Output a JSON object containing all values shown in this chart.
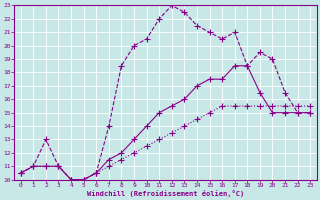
{
  "xlabel": "Windchill (Refroidissement éolien,°C)",
  "background_color": "#c8e8e8",
  "grid_color": "#ffffff",
  "line_color": "#880088",
  "xlim": [
    -0.5,
    23.5
  ],
  "ylim": [
    10,
    23
  ],
  "xticks": [
    0,
    1,
    2,
    3,
    4,
    5,
    6,
    7,
    8,
    9,
    10,
    11,
    12,
    13,
    14,
    15,
    16,
    17,
    18,
    19,
    20,
    21,
    22,
    23
  ],
  "yticks": [
    10,
    11,
    12,
    13,
    14,
    15,
    16,
    17,
    18,
    19,
    20,
    21,
    22,
    23
  ],
  "curve1_x": [
    0,
    1,
    2,
    3,
    4,
    5,
    6,
    7,
    8,
    9,
    10,
    11,
    12,
    13,
    14,
    15,
    16,
    17,
    18,
    19,
    20,
    21,
    22,
    23
  ],
  "curve1_y": [
    10.5,
    11.0,
    13.0,
    11.0,
    10.0,
    10.0,
    10.5,
    14.0,
    18.5,
    20.0,
    20.5,
    22.0,
    23.0,
    22.5,
    21.5,
    21.0,
    20.5,
    21.0,
    18.5,
    19.5,
    19.0,
    16.5,
    15.0,
    15.0
  ],
  "curve2_x": [
    0,
    1,
    2,
    3,
    4,
    5,
    6,
    7,
    8,
    9,
    10,
    11,
    12,
    13,
    14,
    15,
    16,
    17,
    18,
    19,
    20,
    21,
    22,
    23
  ],
  "curve2_y": [
    10.5,
    11.0,
    11.0,
    11.0,
    10.0,
    10.0,
    10.5,
    11.5,
    12.0,
    13.0,
    14.0,
    15.0,
    15.5,
    16.0,
    17.0,
    17.5,
    17.5,
    18.5,
    18.5,
    16.5,
    15.0,
    15.0,
    15.0,
    15.0
  ],
  "curve3_x": [
    0,
    1,
    2,
    3,
    4,
    5,
    6,
    7,
    8,
    9,
    10,
    11,
    12,
    13,
    14,
    15,
    16,
    17,
    18,
    19,
    20,
    21,
    22,
    23
  ],
  "curve3_y": [
    10.5,
    11.0,
    11.0,
    11.0,
    10.0,
    10.0,
    10.5,
    11.0,
    11.5,
    12.0,
    12.5,
    13.0,
    13.5,
    14.0,
    14.5,
    15.0,
    15.5,
    15.5,
    15.5,
    15.5,
    15.5,
    15.5,
    15.5,
    15.5
  ]
}
